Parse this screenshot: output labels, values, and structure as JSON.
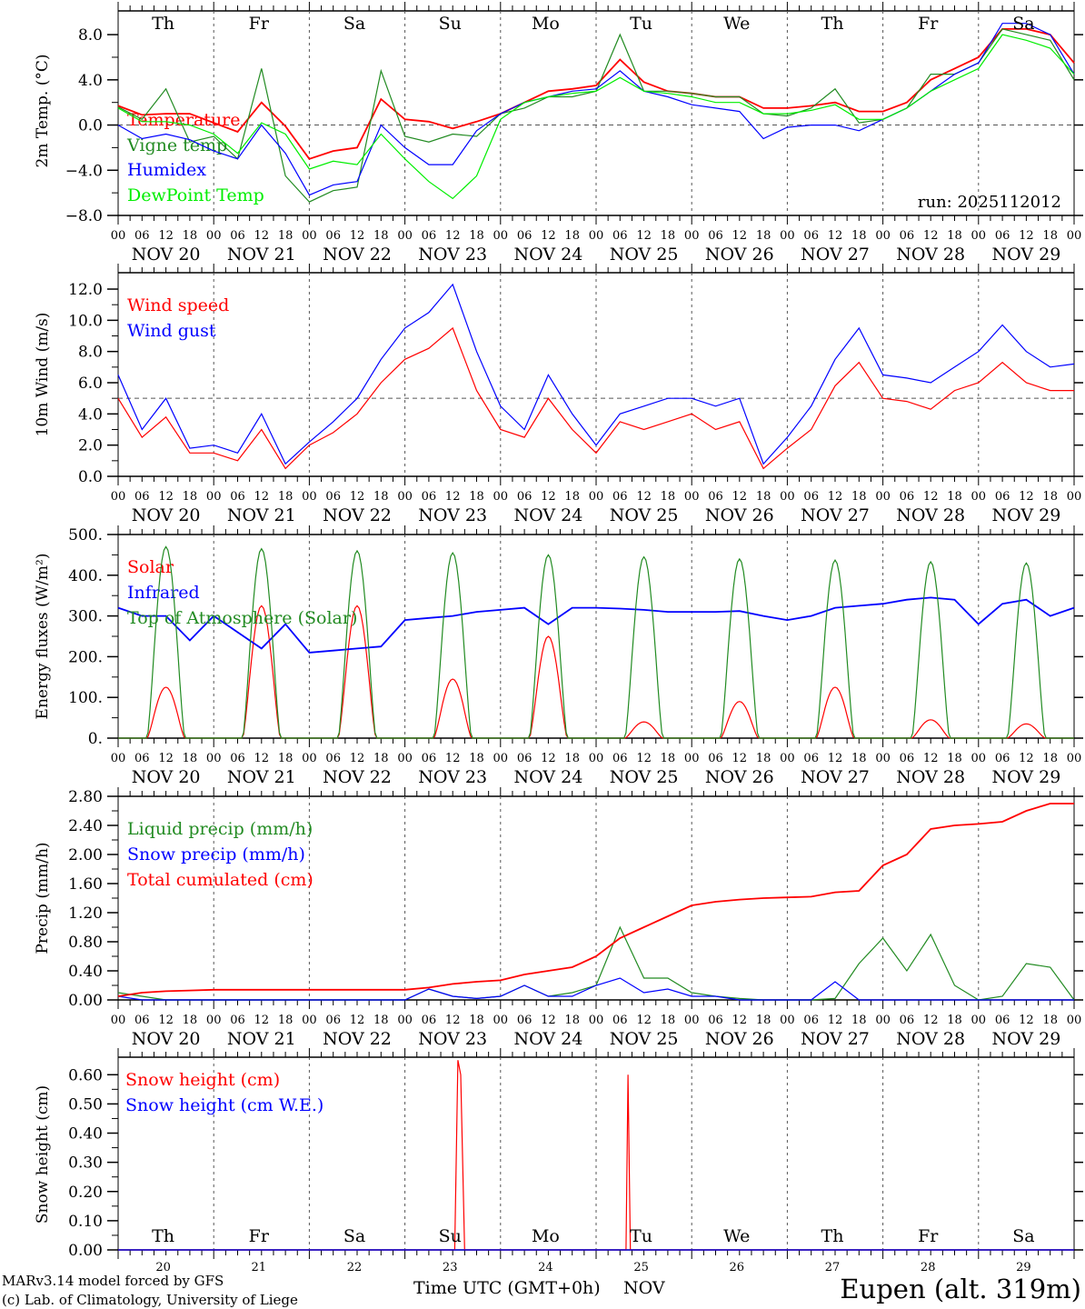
{
  "colors": {
    "red": "#ff0000",
    "green": "#228b22",
    "blue": "#0000ff",
    "lime": "#00ee00"
  },
  "days": [
    "NOV 20",
    "NOV 21",
    "NOV 22",
    "NOV 23",
    "NOV 24",
    "NOV 25",
    "NOV 26",
    "NOV 27",
    "NOV 28",
    "NOV 29"
  ],
  "day_numbers": [
    "20",
    "21",
    "22",
    "23",
    "24",
    "25",
    "26",
    "27",
    "28",
    "29"
  ],
  "weekdays": [
    "Th",
    "Fr",
    "Sa",
    "Su",
    "Mo",
    "Tu",
    "We",
    "Th",
    "Fr",
    "Sa"
  ],
  "weekend_flags": [
    false,
    false,
    true,
    true,
    false,
    false,
    false,
    false,
    false,
    true
  ],
  "hour_labels": [
    "00",
    "06",
    "12",
    "18"
  ],
  "run_label": "run: 2025112012",
  "footer": {
    "model": "MARv3.14 model forced by GFS",
    "credit": "(c) Lab. of Climatology, University of Liege",
    "xlabel": "Time UTC (GMT+0h)",
    "month": "NOV",
    "station": "Eupen (alt. 319m)"
  },
  "chart_data": [
    {
      "type": "line",
      "ylabel": "2m Temp. (°C)",
      "ylim": [
        -8,
        10.1
      ],
      "yticks": [
        8,
        4,
        0,
        -4,
        -8
      ],
      "ytick_labels": [
        "8.0",
        "4.0",
        "0.0",
        "−4.0",
        "−8.0"
      ],
      "ref_line": 0,
      "x_step_hours": 6,
      "series": [
        {
          "name": "Temperature",
          "color": "#ff0000",
          "values": [
            1.7,
            0.9,
            1.0,
            1.0,
            0.2,
            -0.6,
            2.0,
            -0.1,
            -3.0,
            -2.3,
            -2.0,
            2.3,
            0.5,
            0.3,
            -0.3,
            0.3,
            1.0,
            2.0,
            3.0,
            3.2,
            3.5,
            5.8,
            3.8,
            3.0,
            2.8,
            2.5,
            2.5,
            1.5,
            1.5,
            1.7,
            2.0,
            1.2,
            1.2,
            2.0,
            4.0,
            5.0,
            6.0,
            8.5,
            8.5,
            8.0,
            5.5
          ]
        },
        {
          "name": "Vigne temp",
          "color": "#228b22",
          "values": [
            1.6,
            0.5,
            3.2,
            -1.5,
            -1.0,
            -3.0,
            5.0,
            -4.5,
            -6.8,
            -5.8,
            -5.5,
            4.8,
            -1.0,
            -1.5,
            -0.8,
            -1.0,
            1.0,
            1.5,
            2.5,
            2.5,
            3.0,
            8.0,
            3.0,
            3.0,
            2.8,
            2.5,
            2.5,
            1.0,
            0.8,
            1.5,
            3.2,
            0.2,
            0.5,
            1.5,
            4.5,
            4.5,
            5.5,
            8.5,
            8.0,
            7.5,
            4.0
          ]
        },
        {
          "name": "Humidex",
          "color": "#0000ff",
          "values": [
            0,
            -1.2,
            -0.8,
            -1.3,
            -2.3,
            -3.0,
            0.0,
            -2.5,
            -6.2,
            -5.3,
            -5.0,
            0.0,
            -2.0,
            -3.5,
            -3.5,
            -0.5,
            1.0,
            2.0,
            2.5,
            3.0,
            3.2,
            4.8,
            3.0,
            2.5,
            1.8,
            1.5,
            1.2,
            -1.2,
            -0.2,
            0.0,
            0.0,
            -0.5,
            0.5,
            1.5,
            3.0,
            4.5,
            5.5,
            9.0,
            9.0,
            8.0,
            4.5
          ]
        },
        {
          "name": "DewPoint Temp",
          "color": "#00ee00",
          "values": [
            1.5,
            0.3,
            0.3,
            0.0,
            -0.8,
            -2.5,
            0.2,
            -0.8,
            -3.9,
            -3.2,
            -3.5,
            -0.8,
            -3.0,
            -5.0,
            -6.5,
            -4.5,
            0.5,
            2.0,
            2.5,
            2.8,
            3.0,
            4.2,
            3.0,
            2.8,
            2.5,
            2.0,
            2.0,
            1.0,
            1.0,
            1.3,
            1.8,
            0.5,
            0.5,
            1.5,
            3.0,
            4.0,
            5.0,
            8.0,
            7.5,
            6.8,
            4.5
          ]
        }
      ]
    },
    {
      "type": "line",
      "ylabel": "10m Wind (m/s)",
      "ylim": [
        0,
        13.05
      ],
      "yticks": [
        0,
        2,
        4,
        6,
        8,
        10,
        12
      ],
      "ytick_labels": [
        "0.0",
        "2.0",
        "4.0",
        "6.0",
        "8.0",
        "10.0",
        "12.0"
      ],
      "ref_line": 5,
      "x_step_hours": 6,
      "series": [
        {
          "name": "Wind speed",
          "color": "#ff0000",
          "values": [
            5.0,
            2.5,
            3.8,
            1.5,
            1.5,
            1.0,
            3.0,
            0.5,
            2.0,
            2.8,
            4.0,
            6.0,
            7.5,
            8.2,
            9.5,
            5.5,
            3.0,
            2.5,
            5.0,
            3.0,
            1.5,
            3.5,
            3.0,
            3.5,
            4.0,
            3.0,
            3.5,
            0.5,
            1.8,
            3.0,
            5.8,
            7.3,
            5.0,
            4.8,
            4.3,
            5.5,
            6.0,
            7.3,
            6.0,
            5.5,
            5.5
          ]
        },
        {
          "name": "Wind gust",
          "color": "#0000ff",
          "values": [
            6.5,
            3.0,
            5.0,
            1.8,
            2.0,
            1.5,
            4.0,
            0.8,
            2.2,
            3.5,
            5.0,
            7.5,
            9.5,
            10.5,
            12.3,
            8.0,
            4.5,
            3.0,
            6.5,
            4.0,
            2.0,
            4.0,
            4.5,
            5.0,
            5.0,
            4.5,
            5.0,
            0.8,
            2.5,
            4.5,
            7.5,
            9.5,
            6.5,
            6.3,
            6.0,
            7.0,
            8.0,
            9.7,
            8.0,
            7.0,
            7.2
          ]
        }
      ]
    },
    {
      "type": "line",
      "ylabel": "Energy fluxes (W/m²)",
      "ylim": [
        0,
        500
      ],
      "yticks": [
        0,
        100,
        200,
        300,
        400,
        500
      ],
      "ytick_labels": [
        "0.",
        "100.",
        "200.",
        "300.",
        "400.",
        "500."
      ],
      "x_step_hours": 6,
      "series": [
        {
          "name": "Solar",
          "color": "#ff0000",
          "daily_peaks": [
            125,
            325,
            325,
            145,
            250,
            40,
            90,
            125,
            45,
            35
          ]
        },
        {
          "name": "Infrared",
          "color": "#0000ff",
          "values": [
            320,
            300,
            300,
            240,
            300,
            260,
            220,
            280,
            210,
            215,
            220,
            225,
            290,
            295,
            300,
            310,
            315,
            320,
            280,
            320,
            320,
            318,
            315,
            310,
            310,
            310,
            312,
            300,
            290,
            300,
            320,
            325,
            330,
            340,
            345,
            340,
            280,
            330,
            340,
            300,
            320
          ]
        },
        {
          "name": "Top of Atmosphere (Solar)",
          "color": "#228b22",
          "daily_peaks": [
            470,
            465,
            460,
            455,
            450,
            445,
            440,
            437,
            433,
            430
          ]
        }
      ]
    },
    {
      "type": "line",
      "ylabel": "Precip (mm/h)",
      "ylim": [
        0,
        2.8
      ],
      "yticks": [
        0,
        0.4,
        0.8,
        1.2,
        1.6,
        2.0,
        2.4,
        2.8
      ],
      "ytick_labels": [
        "0.00",
        "0.40",
        "0.80",
        "1.20",
        "1.60",
        "2.00",
        "2.40",
        "2.80"
      ],
      "x_step_hours": 6,
      "series": [
        {
          "name": "Liquid precip (mm/h)",
          "color": "#228b22",
          "values": [
            0.1,
            0.05,
            0,
            0,
            0,
            0,
            0,
            0,
            0,
            0,
            0,
            0,
            0,
            0.15,
            0.05,
            0.02,
            0.05,
            0.2,
            0.05,
            0.1,
            0.2,
            1.0,
            0.3,
            0.3,
            0.1,
            0.05,
            0.02,
            0,
            0,
            0,
            0.02,
            0.5,
            0.85,
            0.4,
            0.9,
            0.2,
            0,
            0.05,
            0.5,
            0.45,
            0
          ]
        },
        {
          "name": "Snow precip (mm/h)",
          "color": "#0000ff",
          "values": [
            0.05,
            0,
            0,
            0,
            0,
            0,
            0,
            0,
            0,
            0,
            0,
            0,
            0,
            0.15,
            0.05,
            0.02,
            0.05,
            0.2,
            0.05,
            0.05,
            0.2,
            0.3,
            0.1,
            0.15,
            0.05,
            0.05,
            0,
            0,
            0,
            0,
            0.25,
            0,
            0,
            0,
            0,
            0,
            0,
            0,
            0,
            0,
            0
          ]
        },
        {
          "name": "Total cumulated (cm)",
          "color": "#ff0000",
          "values": [
            0.05,
            0.1,
            0.12,
            0.13,
            0.14,
            0.14,
            0.14,
            0.14,
            0.14,
            0.14,
            0.14,
            0.14,
            0.14,
            0.17,
            0.22,
            0.25,
            0.27,
            0.35,
            0.4,
            0.45,
            0.6,
            0.85,
            1.0,
            1.15,
            1.3,
            1.35,
            1.38,
            1.4,
            1.41,
            1.42,
            1.48,
            1.5,
            1.85,
            2.0,
            2.35,
            2.4,
            2.42,
            2.45,
            2.6,
            2.7,
            2.7
          ]
        }
      ]
    },
    {
      "type": "line",
      "ylabel": "Snow height (cm)",
      "ylim": [
        0,
        0.66
      ],
      "yticks": [
        0,
        0.1,
        0.2,
        0.3,
        0.4,
        0.5,
        0.6
      ],
      "ytick_labels": [
        "0.00",
        "0.10",
        "0.20",
        "0.30",
        "0.40",
        "0.50",
        "0.60"
      ],
      "series": [
        {
          "name": "Snow height (cm)",
          "color": "#ff0000",
          "points": [
            [
              0,
              0
            ],
            [
              84.5,
              0
            ],
            [
              85.3,
              0.65
            ],
            [
              86,
              0.6
            ],
            [
              87,
              0
            ],
            [
              127.5,
              0
            ],
            [
              128,
              0.6
            ],
            [
              128.6,
              0
            ],
            [
              240,
              0
            ]
          ]
        },
        {
          "name": "Snow height (cm W.E.)",
          "color": "#0000ff",
          "points": [
            [
              0,
              0
            ],
            [
              240,
              0
            ]
          ]
        }
      ]
    }
  ]
}
